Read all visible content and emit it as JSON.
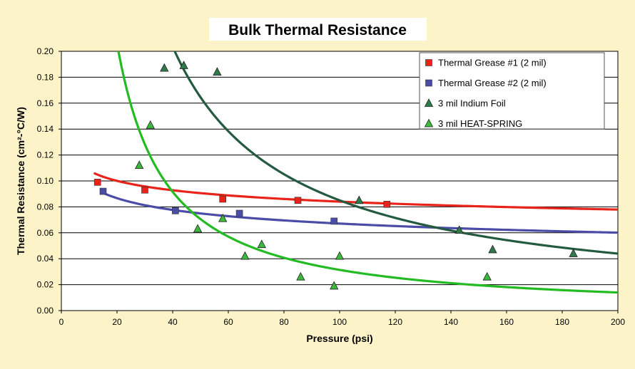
{
  "chart_data": {
    "type": "scatter",
    "title": "Bulk Thermal Resistance",
    "xlabel": "Pressure (psi)",
    "ylabel": "Thermal Resistance (cm²-°C/W)",
    "xlim": [
      0,
      200
    ],
    "ylim": [
      0,
      0.2
    ],
    "x_ticks": [
      "0",
      "20",
      "40",
      "60",
      "80",
      "100",
      "120",
      "140",
      "160",
      "180",
      "200"
    ],
    "y_ticks": [
      "0.00",
      "0.02",
      "0.04",
      "0.06",
      "0.08",
      "0.10",
      "0.12",
      "0.14",
      "0.16",
      "0.18",
      "0.20"
    ],
    "grid": true,
    "legend_position": "top-right",
    "series": [
      {
        "name": "Thermal Grease #1 (2 mil)",
        "marker": "square",
        "color": "#e8231a",
        "points": [
          [
            13,
            0.099
          ],
          [
            30,
            0.093
          ],
          [
            58,
            0.086
          ],
          [
            85,
            0.085
          ],
          [
            117,
            0.082
          ]
        ],
        "trend": {
          "color": "#e8231a",
          "a": 0.1385,
          "b": -0.1085,
          "from": 12,
          "to": 200
        }
      },
      {
        "name": "Thermal Grease #2 (2 mil)",
        "marker": "square",
        "color": "#4b4ba8",
        "points": [
          [
            15,
            0.092
          ],
          [
            41,
            0.077
          ],
          [
            64,
            0.075
          ],
          [
            98,
            0.069
          ]
        ],
        "trend": {
          "color": "#4b4ba8",
          "a": 0.1396,
          "b": -0.159,
          "from": 15,
          "to": 200
        }
      },
      {
        "name": "3 mil Indium Foil",
        "marker": "triangle",
        "color": "#2e7a4a",
        "points": [
          [
            37,
            0.187
          ],
          [
            44,
            0.189
          ],
          [
            56,
            0.184
          ],
          [
            107,
            0.085
          ],
          [
            143,
            0.062
          ],
          [
            155,
            0.047
          ],
          [
            184,
            0.044
          ]
        ],
        "trend": {
          "color": "#245a40",
          "a": 6.834,
          "b": -0.9525,
          "from": 38,
          "to": 200
        }
      },
      {
        "name": "3 mil HEAT-SPRING",
        "marker": "triangle",
        "color": "#3cb83c",
        "points": [
          [
            28,
            0.112
          ],
          [
            32,
            0.143
          ],
          [
            49,
            0.063
          ],
          [
            58,
            0.071
          ],
          [
            66,
            0.042
          ],
          [
            72,
            0.051
          ],
          [
            86,
            0.026
          ],
          [
            98,
            0.019
          ],
          [
            100,
            0.042
          ],
          [
            153,
            0.026
          ]
        ],
        "trend": {
          "color": "#22bb22",
          "a": 6.836,
          "b": -1.169,
          "from": 16,
          "to": 200
        }
      }
    ]
  }
}
